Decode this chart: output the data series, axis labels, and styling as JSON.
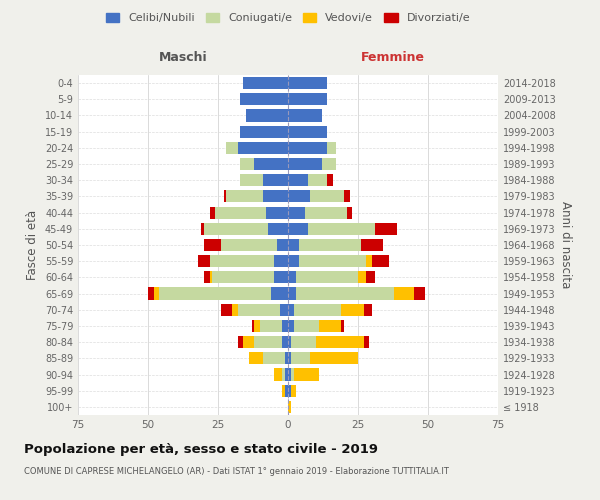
{
  "age_groups": [
    "100+",
    "95-99",
    "90-94",
    "85-89",
    "80-84",
    "75-79",
    "70-74",
    "65-69",
    "60-64",
    "55-59",
    "50-54",
    "45-49",
    "40-44",
    "35-39",
    "30-34",
    "25-29",
    "20-24",
    "15-19",
    "10-14",
    "5-9",
    "0-4"
  ],
  "birth_years": [
    "≤ 1918",
    "1919-1923",
    "1924-1928",
    "1929-1933",
    "1934-1938",
    "1939-1943",
    "1944-1948",
    "1949-1953",
    "1954-1958",
    "1959-1963",
    "1964-1968",
    "1969-1973",
    "1974-1978",
    "1979-1983",
    "1984-1988",
    "1989-1993",
    "1994-1998",
    "1999-2003",
    "2004-2008",
    "2009-2013",
    "2014-2018"
  ],
  "maschi": {
    "celibi": [
      0,
      1,
      1,
      1,
      2,
      2,
      3,
      6,
      5,
      5,
      4,
      7,
      8,
      9,
      9,
      12,
      18,
      17,
      15,
      17,
      16
    ],
    "coniugati": [
      0,
      0,
      1,
      8,
      10,
      8,
      15,
      40,
      22,
      23,
      20,
      23,
      18,
      13,
      8,
      5,
      4,
      0,
      0,
      0,
      0
    ],
    "vedovi": [
      0,
      1,
      3,
      5,
      4,
      2,
      2,
      2,
      1,
      0,
      0,
      0,
      0,
      0,
      0,
      0,
      0,
      0,
      0,
      0,
      0
    ],
    "divorziati": [
      0,
      0,
      0,
      0,
      2,
      1,
      4,
      2,
      2,
      4,
      6,
      1,
      2,
      1,
      0,
      0,
      0,
      0,
      0,
      0,
      0
    ]
  },
  "femmine": {
    "nubili": [
      0,
      1,
      1,
      1,
      1,
      2,
      2,
      3,
      3,
      4,
      4,
      7,
      6,
      8,
      7,
      12,
      14,
      14,
      12,
      14,
      14
    ],
    "coniugate": [
      0,
      0,
      1,
      7,
      9,
      9,
      17,
      35,
      22,
      24,
      22,
      24,
      15,
      12,
      7,
      5,
      3,
      0,
      0,
      0,
      0
    ],
    "vedove": [
      1,
      2,
      9,
      17,
      17,
      8,
      8,
      7,
      3,
      2,
      0,
      0,
      0,
      0,
      0,
      0,
      0,
      0,
      0,
      0,
      0
    ],
    "divorziate": [
      0,
      0,
      0,
      0,
      2,
      1,
      3,
      4,
      3,
      6,
      8,
      8,
      2,
      2,
      2,
      0,
      0,
      0,
      0,
      0,
      0
    ]
  },
  "colors": {
    "celibi": "#4472c4",
    "coniugati": "#c5d9a0",
    "vedovi": "#ffc000",
    "divorziati": "#cc0000"
  },
  "xlim": 75,
  "title": "Popolazione per età, sesso e stato civile - 2019",
  "subtitle": "COMUNE DI CAPRESE MICHELANGELO (AR) - Dati ISTAT 1° gennaio 2019 - Elaborazione TUTTITALIA.IT",
  "ylabel_left": "Fasce di età",
  "ylabel_right": "Anni di nascita",
  "legend_labels": [
    "Celibi/Nubili",
    "Coniugati/e",
    "Vedovi/e",
    "Divorziati/e"
  ],
  "maschi_label": "Maschi",
  "femmine_label": "Femmine",
  "bg_color": "#f0f0eb",
  "plot_bg_color": "#ffffff"
}
